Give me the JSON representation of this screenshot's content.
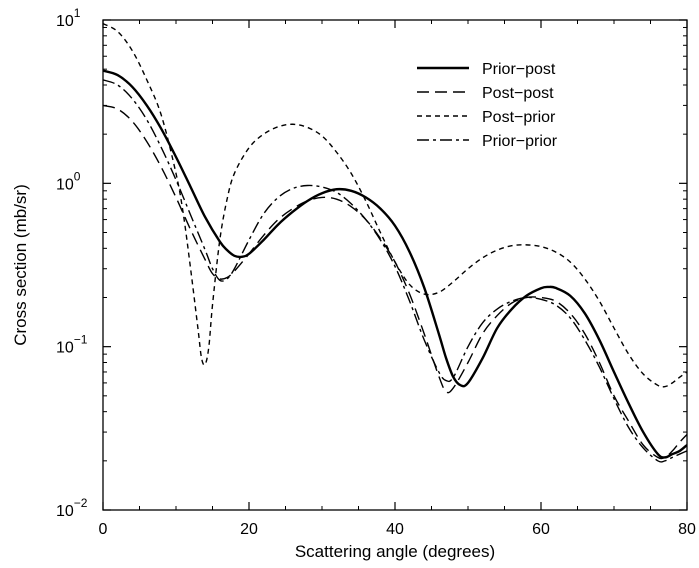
{
  "chart_data": {
    "type": "line",
    "title": "",
    "xlabel": "Scattering angle (degrees)",
    "ylabel": "Cross section (mb/sr)",
    "xlim": [
      0,
      80
    ],
    "ylim": [
      0.01,
      10
    ],
    "yscale": "log",
    "grid": false,
    "legend_position": "top-right",
    "x_ticks": [
      {
        "value": 0,
        "label": "0"
      },
      {
        "value": 20,
        "label": "20"
      },
      {
        "value": 40,
        "label": "40"
      },
      {
        "value": 60,
        "label": "60"
      },
      {
        "value": 80,
        "label": "80"
      }
    ],
    "y_ticks": [
      {
        "value": 0.01,
        "base": "10",
        "exp": "−2"
      },
      {
        "value": 0.1,
        "base": "10",
        "exp": "−1"
      },
      {
        "value": 1,
        "base": "10",
        "exp": "0"
      },
      {
        "value": 10,
        "base": "10",
        "exp": "1"
      }
    ],
    "series": [
      {
        "name": "Prior−post",
        "dash": "solid",
        "x": [
          0,
          2,
          4,
          6,
          8,
          10,
          12,
          14,
          16,
          17,
          18,
          19,
          20,
          22,
          24,
          26,
          28,
          30,
          32,
          34,
          36,
          38,
          40,
          42,
          44,
          46,
          47,
          48,
          49,
          50,
          52,
          54,
          56,
          58,
          60,
          61,
          62,
          64,
          66,
          68,
          70,
          72,
          74,
          76,
          77,
          78,
          79,
          80
        ],
        "y": [
          4.9,
          4.6,
          3.9,
          3.0,
          2.15,
          1.45,
          0.95,
          0.62,
          0.44,
          0.39,
          0.36,
          0.355,
          0.37,
          0.45,
          0.56,
          0.67,
          0.78,
          0.87,
          0.92,
          0.9,
          0.82,
          0.7,
          0.55,
          0.38,
          0.23,
          0.12,
          0.085,
          0.065,
          0.058,
          0.06,
          0.085,
          0.13,
          0.17,
          0.205,
          0.228,
          0.232,
          0.229,
          0.205,
          0.16,
          0.11,
          0.07,
          0.045,
          0.03,
          0.022,
          0.021,
          0.022,
          0.023,
          0.025
        ]
      },
      {
        "name": "Post−post",
        "dash": "12,6",
        "x": [
          0,
          2,
          4,
          6,
          8,
          10,
          12,
          14,
          15,
          16,
          17,
          18,
          20,
          22,
          24,
          26,
          28,
          30,
          32,
          34,
          36,
          38,
          40,
          42,
          44,
          46,
          47,
          48,
          50,
          52,
          54,
          56,
          58,
          60,
          62,
          64,
          66,
          68,
          70,
          72,
          74,
          76,
          77,
          78,
          79,
          80
        ],
        "y": [
          3.0,
          2.85,
          2.4,
          1.8,
          1.25,
          0.82,
          0.52,
          0.34,
          0.28,
          0.26,
          0.265,
          0.29,
          0.37,
          0.48,
          0.6,
          0.7,
          0.78,
          0.82,
          0.8,
          0.72,
          0.6,
          0.46,
          0.33,
          0.21,
          0.12,
          0.066,
          0.053,
          0.056,
          0.08,
          0.12,
          0.155,
          0.185,
          0.2,
          0.2,
          0.19,
          0.16,
          0.12,
          0.08,
          0.05,
          0.035,
          0.025,
          0.021,
          0.021,
          0.023,
          0.026,
          0.029
        ]
      },
      {
        "name": "Post−prior",
        "dash": "5,4",
        "x": [
          0,
          2,
          4,
          6,
          8,
          10,
          11,
          12,
          13,
          13.5,
          14,
          14.5,
          15,
          16,
          17,
          18,
          20,
          22,
          24,
          26,
          28,
          30,
          32,
          34,
          36,
          38,
          40,
          42,
          44,
          46,
          48,
          50,
          52,
          54,
          56,
          58,
          60,
          62,
          64,
          66,
          68,
          70,
          72,
          74,
          76,
          77,
          78,
          79,
          80
        ],
        "y": [
          9.5,
          8.5,
          6.5,
          4.3,
          2.6,
          1.15,
          0.65,
          0.3,
          0.13,
          0.085,
          0.078,
          0.1,
          0.18,
          0.45,
          0.8,
          1.15,
          1.65,
          2.0,
          2.22,
          2.3,
          2.2,
          1.95,
          1.55,
          1.15,
          0.78,
          0.5,
          0.33,
          0.24,
          0.21,
          0.215,
          0.25,
          0.3,
          0.35,
          0.39,
          0.415,
          0.42,
          0.41,
          0.38,
          0.33,
          0.26,
          0.19,
          0.13,
          0.09,
          0.068,
          0.058,
          0.057,
          0.06,
          0.065,
          0.07
        ]
      },
      {
        "name": "Prior−prior",
        "dash": "12,4,3,4",
        "x": [
          0,
          2,
          4,
          6,
          8,
          10,
          12,
          14,
          15,
          16,
          17,
          18,
          20,
          22,
          24,
          26,
          28,
          30,
          32,
          34,
          36,
          38,
          40,
          42,
          44,
          46,
          47,
          48,
          50,
          52,
          54,
          56,
          58,
          60,
          62,
          64,
          66,
          68,
          70,
          72,
          74,
          76,
          77,
          78,
          79,
          80
        ],
        "y": [
          4.3,
          4.0,
          3.3,
          2.45,
          1.65,
          1.05,
          0.64,
          0.39,
          0.3,
          0.255,
          0.26,
          0.3,
          0.45,
          0.65,
          0.82,
          0.93,
          0.97,
          0.95,
          0.88,
          0.75,
          0.6,
          0.45,
          0.31,
          0.19,
          0.11,
          0.07,
          0.062,
          0.065,
          0.1,
          0.14,
          0.17,
          0.19,
          0.2,
          0.195,
          0.18,
          0.15,
          0.11,
          0.075,
          0.048,
          0.032,
          0.024,
          0.02,
          0.02,
          0.021,
          0.022,
          0.023
        ]
      }
    ]
  }
}
